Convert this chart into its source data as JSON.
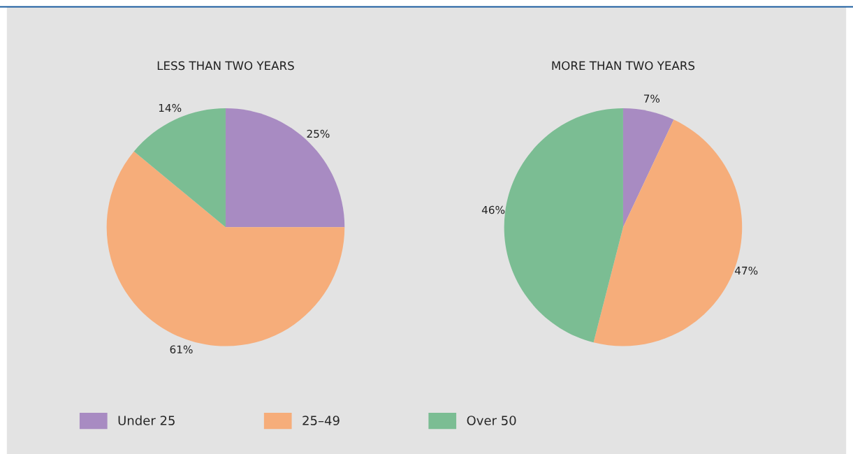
{
  "chart_data": [
    {
      "type": "pie",
      "title": "LESS THAN TWO YEARS",
      "categories": [
        "Under 25",
        "25–49",
        "Over 50"
      ],
      "values": [
        25,
        61,
        14
      ],
      "colors": [
        "#a88bc2",
        "#f6ad7a",
        "#7bbd93"
      ],
      "value_labels": [
        "25%",
        "61%",
        "14%"
      ],
      "legend": "bottom"
    },
    {
      "type": "pie",
      "title": "MORE THAN TWO YEARS",
      "categories": [
        null,
        null,
        null
      ],
      "values": [
        7,
        47,
        46
      ],
      "colors": [
        "#a88bc2",
        "#f6ad7a",
        "#7bbd93"
      ],
      "value_labels": [
        "7%",
        "47%",
        "46%"
      ]
    }
  ]
}
